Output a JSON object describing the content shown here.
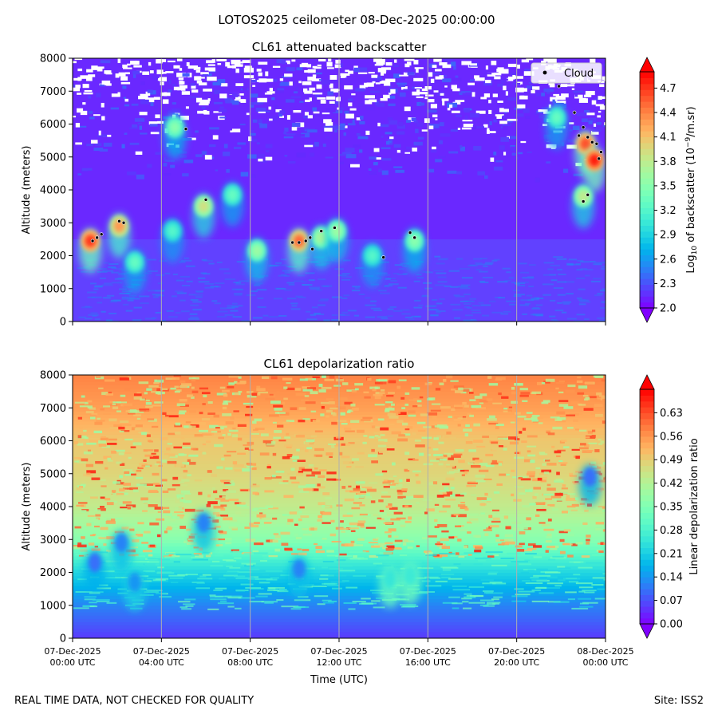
{
  "page": {
    "suptitle": "LOTOS2025 ceilometer 08-Dec-2025 00:00:00",
    "footer_left": "REAL TIME DATA, NOT CHECKED FOR QUALITY",
    "footer_right": "Site: ISS2"
  },
  "chart_data": [
    {
      "type": "heatmap",
      "title": "CL61 attenuated backscatter",
      "xlabel": "",
      "ylabel": "Altitude (meters)",
      "x_ticks": [
        "07-Dec-2025\n00:00 UTC",
        "07-Dec-2025\n04:00 UTC",
        "07-Dec-2025\n08:00 UTC",
        "07-Dec-2025\n12:00 UTC",
        "07-Dec-2025\n16:00 UTC",
        "07-Dec-2025\n20:00 UTC",
        "08-Dec-2025\n00:00 UTC"
      ],
      "x_range_hours": [
        0,
        24
      ],
      "y_ticks": [
        0,
        1000,
        2000,
        3000,
        4000,
        5000,
        6000,
        7000,
        8000
      ],
      "ylim": [
        0,
        8000
      ],
      "colorbar": {
        "label": "Log10 of backscatter (10^-9/m.sr)",
        "range": [
          2.0,
          4.9
        ],
        "ticks": [
          "2.0",
          "2.3",
          "2.6",
          "2.9",
          "3.2",
          "3.5",
          "3.8",
          "4.1",
          "4.4",
          "4.7"
        ],
        "extend": "both"
      },
      "legend": {
        "label": "Cloud",
        "position": "top-right"
      },
      "features": [
        {
          "t": 0.8,
          "alt": 2450,
          "value": 4.7
        },
        {
          "t": 2.1,
          "alt": 2900,
          "value": 4.3
        },
        {
          "t": 2.8,
          "alt": 1800,
          "value": 3.3
        },
        {
          "t": 4.6,
          "alt": 5900,
          "value": 3.5
        },
        {
          "t": 4.5,
          "alt": 2750,
          "value": 3.2
        },
        {
          "t": 5.9,
          "alt": 3500,
          "value": 3.9
        },
        {
          "t": 7.2,
          "alt": 3850,
          "value": 3.3
        },
        {
          "t": 8.3,
          "alt": 2150,
          "value": 3.6
        },
        {
          "t": 10.2,
          "alt": 2450,
          "value": 4.5
        },
        {
          "t": 11.2,
          "alt": 2550,
          "value": 3.7
        },
        {
          "t": 11.9,
          "alt": 2750,
          "value": 3.6
        },
        {
          "t": 13.5,
          "alt": 2000,
          "value": 3.2
        },
        {
          "t": 15.4,
          "alt": 2450,
          "value": 3.5
        },
        {
          "t": 21.8,
          "alt": 6200,
          "value": 3.3
        },
        {
          "t": 23.1,
          "alt": 5400,
          "value": 4.6
        },
        {
          "t": 23.5,
          "alt": 4900,
          "value": 4.8
        },
        {
          "t": 23.0,
          "alt": 3800,
          "value": 3.8
        }
      ],
      "cloud_points": [
        {
          "t": 0.9,
          "alt": 2450
        },
        {
          "t": 1.1,
          "alt": 2550
        },
        {
          "t": 1.3,
          "alt": 2650
        },
        {
          "t": 2.1,
          "alt": 3050
        },
        {
          "t": 2.3,
          "alt": 3000
        },
        {
          "t": 5.1,
          "alt": 5850
        },
        {
          "t": 6.0,
          "alt": 3700
        },
        {
          "t": 9.9,
          "alt": 2400
        },
        {
          "t": 10.2,
          "alt": 2400
        },
        {
          "t": 10.5,
          "alt": 2450
        },
        {
          "t": 10.7,
          "alt": 2550
        },
        {
          "t": 10.8,
          "alt": 2200
        },
        {
          "t": 11.2,
          "alt": 2750
        },
        {
          "t": 11.8,
          "alt": 2850
        },
        {
          "t": 14.0,
          "alt": 1950
        },
        {
          "t": 15.2,
          "alt": 2700
        },
        {
          "t": 15.4,
          "alt": 2550
        },
        {
          "t": 21.9,
          "alt": 7150
        },
        {
          "t": 22.6,
          "alt": 6350
        },
        {
          "t": 22.8,
          "alt": 5650
        },
        {
          "t": 23.0,
          "alt": 5900
        },
        {
          "t": 23.2,
          "alt": 5600
        },
        {
          "t": 23.4,
          "alt": 5450
        },
        {
          "t": 23.6,
          "alt": 5400
        },
        {
          "t": 23.7,
          "alt": 4950
        },
        {
          "t": 23.8,
          "alt": 5150
        },
        {
          "t": 23.0,
          "alt": 3650
        },
        {
          "t": 23.2,
          "alt": 3850
        }
      ]
    },
    {
      "type": "heatmap",
      "title": "CL61 depolarization ratio",
      "xlabel": "Time (UTC)",
      "ylabel": "Altitude (meters)",
      "x_ticks": [
        "07-Dec-2025\n00:00 UTC",
        "07-Dec-2025\n04:00 UTC",
        "07-Dec-2025\n08:00 UTC",
        "07-Dec-2025\n12:00 UTC",
        "07-Dec-2025\n16:00 UTC",
        "07-Dec-2025\n20:00 UTC",
        "08-Dec-2025\n00:00 UTC"
      ],
      "x_range_hours": [
        0,
        24
      ],
      "y_ticks": [
        0,
        1000,
        2000,
        3000,
        4000,
        5000,
        6000,
        7000,
        8000
      ],
      "ylim": [
        0,
        8000
      ],
      "colorbar": {
        "label": "Linear depolarization ratio",
        "range": [
          0.0,
          0.7
        ],
        "ticks": [
          "0.00",
          "0.07",
          "0.14",
          "0.21",
          "0.28",
          "0.35",
          "0.42",
          "0.49",
          "0.56",
          "0.63"
        ],
        "extend": "both"
      },
      "profile": [
        {
          "alt": 0,
          "value": 0.05
        },
        {
          "alt": 1000,
          "value": 0.12
        },
        {
          "alt": 2000,
          "value": 0.22
        },
        {
          "alt": 3000,
          "value": 0.36
        },
        {
          "alt": 4000,
          "value": 0.44
        },
        {
          "alt": 5000,
          "value": 0.48
        },
        {
          "alt": 6000,
          "value": 0.5
        },
        {
          "alt": 7000,
          "value": 0.55
        },
        {
          "alt": 8000,
          "value": 0.58
        }
      ],
      "features": [
        {
          "t": 1.0,
          "alt": 2300,
          "value": 0.1
        },
        {
          "t": 2.2,
          "alt": 2900,
          "value": 0.12
        },
        {
          "t": 2.8,
          "alt": 1700,
          "value": 0.14
        },
        {
          "t": 5.9,
          "alt": 3500,
          "value": 0.12
        },
        {
          "t": 10.2,
          "alt": 2100,
          "value": 0.12
        },
        {
          "t": 14.3,
          "alt": 1800,
          "value": 0.25
        },
        {
          "t": 15.2,
          "alt": 1900,
          "value": 0.26
        },
        {
          "t": 23.3,
          "alt": 4900,
          "value": 0.1
        }
      ]
    }
  ]
}
